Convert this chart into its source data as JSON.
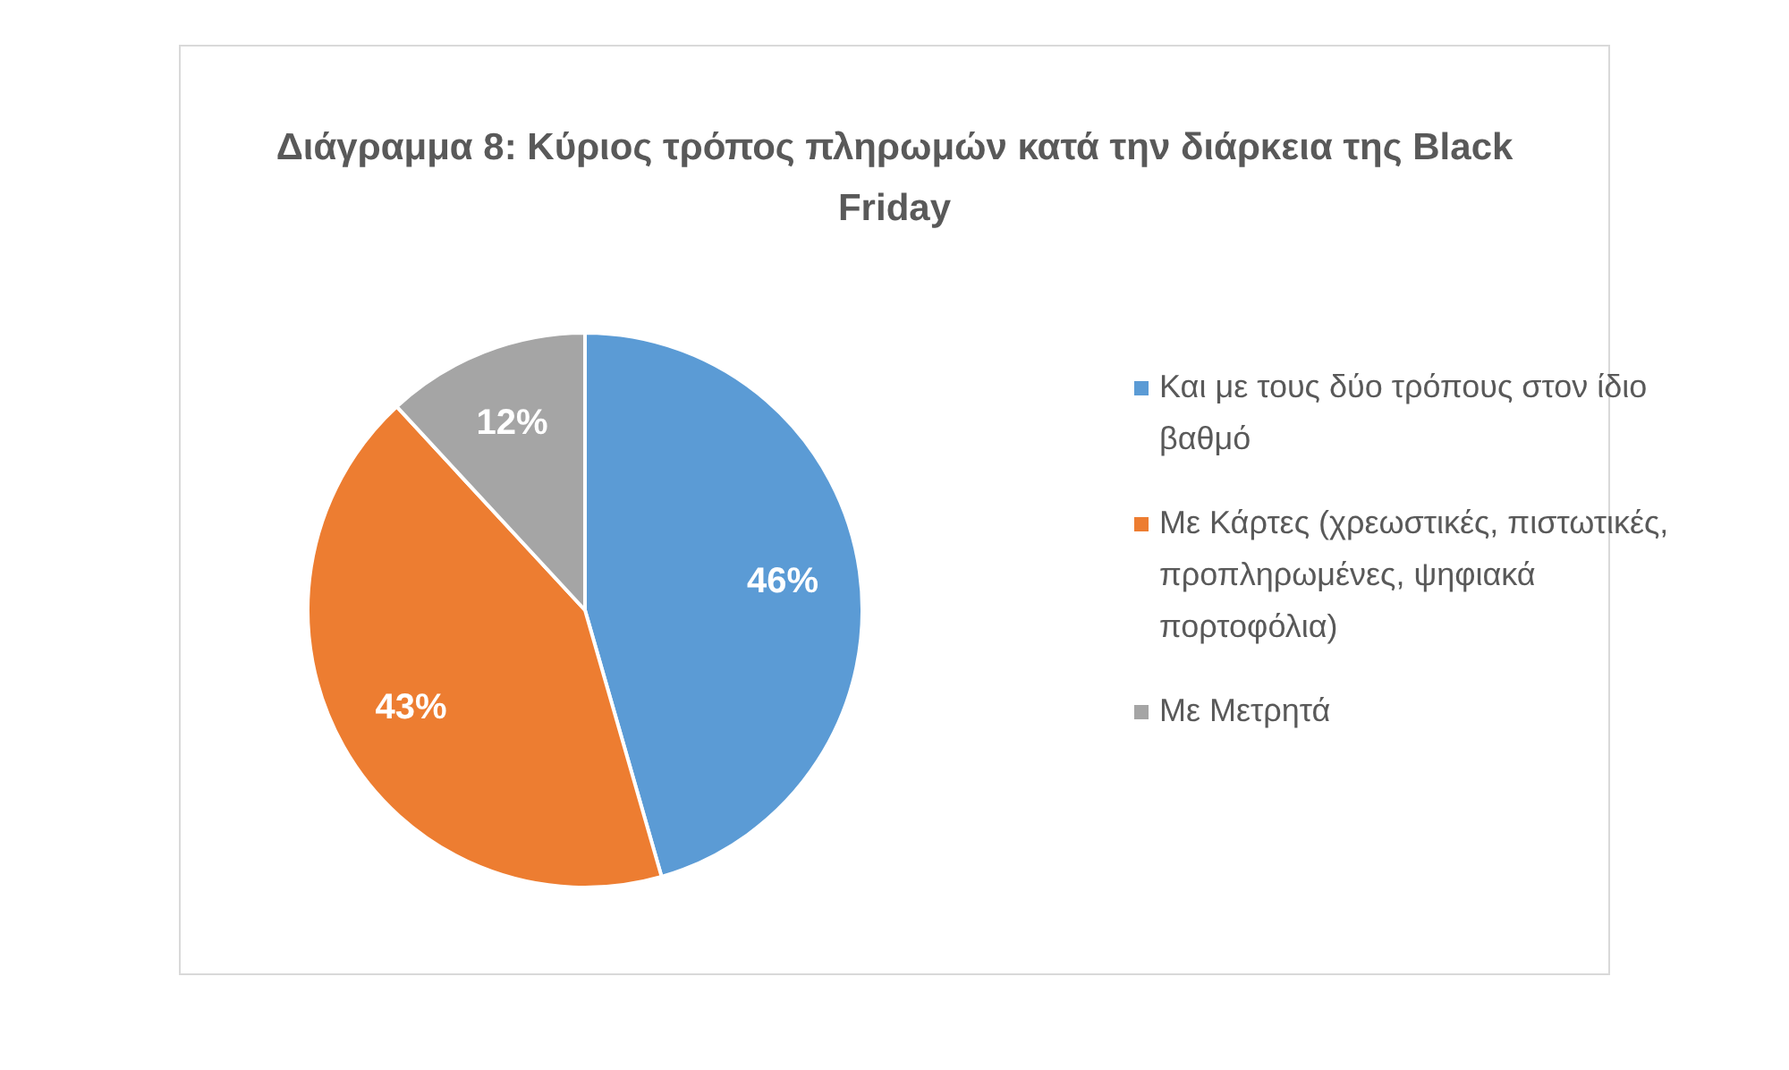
{
  "chart_data": {
    "type": "pie",
    "title": "Διάγραμμα 8: Κύριος τρόπος πληρωμών κατά την διάρκεια της Black Friday",
    "categories": [
      "Και με τους δύο τρόπους στον ίδιο βαθμό",
      "Με Κάρτες (χρεωστικές, πιστωτικές, προπληρωμένες, ψηφιακά πορτοφόλια)",
      "Με Μετρητά"
    ],
    "values": [
      46,
      43,
      12
    ],
    "value_labels": [
      "46%",
      "43%",
      "12%"
    ],
    "colors": [
      "#5b9bd5",
      "#ed7d31",
      "#a5a5a5"
    ],
    "legend": "right"
  }
}
